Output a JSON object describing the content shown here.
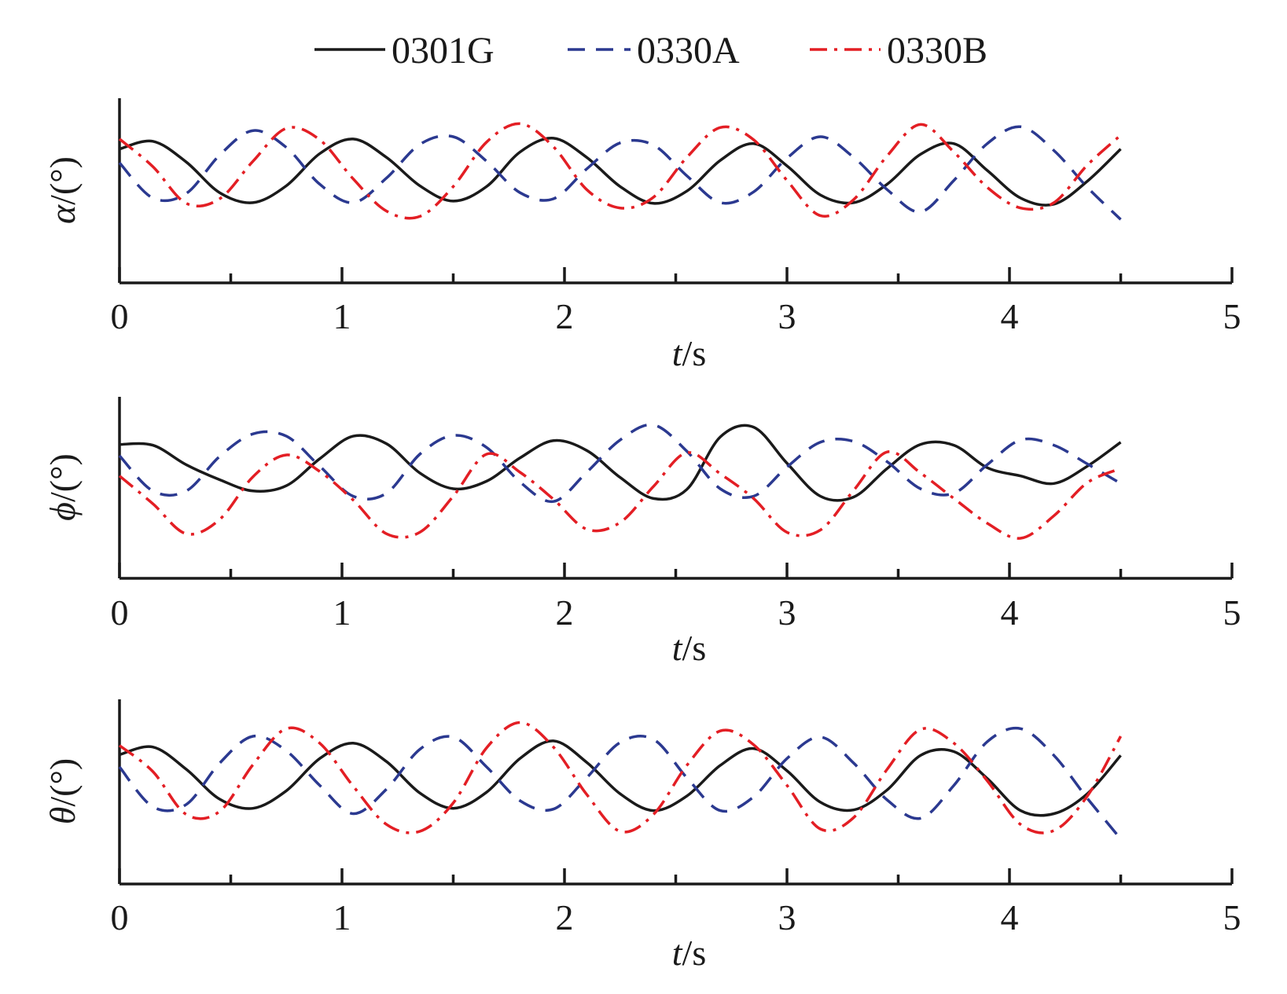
{
  "legend": [
    {
      "name": "0301G",
      "color": "#1a1a1a",
      "dash": "solid"
    },
    {
      "name": "0330A",
      "color": "#2b3990",
      "dash": "dash"
    },
    {
      "name": "0330B",
      "color": "#e31e24",
      "dash": "dashdot"
    }
  ],
  "chart_data": [
    {
      "type": "line",
      "ylabel_symbol": "α",
      "ylabel_unit": "/(°)",
      "xlabel_symbol": "t",
      "xlabel_unit": "/s",
      "xlim": [
        0,
        5
      ],
      "xticks": [
        "0",
        "1",
        "2",
        "3",
        "4",
        "5"
      ],
      "ylim": [
        -1,
        1
      ],
      "series": [
        {
          "name": "0301G",
          "x": [
            0,
            0.15,
            0.3,
            0.45,
            0.6,
            0.75,
            0.9,
            1.05,
            1.2,
            1.35,
            1.5,
            1.65,
            1.8,
            1.95,
            2.1,
            2.25,
            2.4,
            2.55,
            2.7,
            2.85,
            3.0,
            3.15,
            3.3,
            3.45,
            3.6,
            3.75,
            3.9,
            4.05,
            4.2,
            4.35,
            4.5
          ],
          "y": [
            0.44,
            0.54,
            0.27,
            -0.13,
            -0.26,
            -0.04,
            0.38,
            0.57,
            0.33,
            -0.04,
            -0.24,
            -0.05,
            0.4,
            0.58,
            0.33,
            -0.05,
            -0.27,
            -0.11,
            0.29,
            0.51,
            0.22,
            -0.16,
            -0.26,
            -0.02,
            0.37,
            0.51,
            0.16,
            -0.2,
            -0.28,
            0.02,
            0.44
          ]
        },
        {
          "name": "0330A",
          "x": [
            0,
            0.15,
            0.3,
            0.45,
            0.6,
            0.75,
            0.9,
            1.05,
            1.2,
            1.35,
            1.5,
            1.65,
            1.8,
            1.95,
            2.1,
            2.25,
            2.4,
            2.55,
            2.7,
            2.85,
            3.0,
            3.15,
            3.3,
            3.45,
            3.6,
            3.75,
            3.9,
            4.05,
            4.2,
            4.35,
            4.5
          ],
          "y": [
            0.26,
            -0.2,
            -0.14,
            0.36,
            0.68,
            0.46,
            -0.02,
            -0.26,
            0.06,
            0.5,
            0.6,
            0.28,
            -0.13,
            -0.21,
            0.18,
            0.52,
            0.49,
            0.09,
            -0.26,
            -0.12,
            0.32,
            0.6,
            0.33,
            -0.09,
            -0.38,
            0.03,
            0.51,
            0.73,
            0.42,
            -0.06,
            -0.48
          ]
        },
        {
          "name": "0330B",
          "x": [
            0,
            0.15,
            0.3,
            0.45,
            0.6,
            0.75,
            0.9,
            1.05,
            1.2,
            1.35,
            1.5,
            1.65,
            1.8,
            1.95,
            2.1,
            2.25,
            2.4,
            2.55,
            2.7,
            2.85,
            3.0,
            3.15,
            3.3,
            3.45,
            3.6,
            3.75,
            3.9,
            4.05,
            4.2,
            4.35,
            4.5
          ],
          "y": [
            0.57,
            0.21,
            -0.27,
            -0.21,
            0.28,
            0.71,
            0.56,
            0.05,
            -0.37,
            -0.44,
            -0.05,
            0.53,
            0.77,
            0.47,
            -0.09,
            -0.33,
            -0.19,
            0.33,
            0.72,
            0.56,
            0.03,
            -0.43,
            -0.22,
            0.35,
            0.76,
            0.4,
            -0.06,
            -0.33,
            -0.26,
            0.23,
            0.62
          ]
        }
      ]
    },
    {
      "type": "line",
      "ylabel_symbol": "ϕ",
      "ylabel_unit": "/(°)",
      "xlabel_symbol": "t",
      "xlabel_unit": "/s",
      "xlim": [
        0,
        5
      ],
      "xticks": [
        "0",
        "1",
        "2",
        "3",
        "4",
        "5"
      ],
      "ylim": [
        -1,
        1
      ],
      "series": [
        {
          "name": "0301G",
          "x": [
            0,
            0.15,
            0.3,
            0.45,
            0.6,
            0.75,
            0.9,
            1.05,
            1.2,
            1.35,
            1.5,
            1.65,
            1.8,
            1.95,
            2.1,
            2.25,
            2.4,
            2.55,
            2.7,
            2.85,
            3.0,
            3.15,
            3.3,
            3.45,
            3.6,
            3.75,
            3.9,
            4.05,
            4.2,
            4.35,
            4.5
          ],
          "y": [
            0.47,
            0.46,
            0.2,
            0.0,
            -0.15,
            -0.08,
            0.28,
            0.58,
            0.48,
            0.09,
            -0.12,
            -0.02,
            0.29,
            0.52,
            0.39,
            0.03,
            -0.25,
            -0.13,
            0.57,
            0.7,
            0.22,
            -0.22,
            -0.23,
            0.15,
            0.47,
            0.46,
            0.16,
            0.05,
            -0.05,
            0.18,
            0.5
          ]
        },
        {
          "name": "0330A",
          "x": [
            0,
            0.15,
            0.3,
            0.45,
            0.6,
            0.75,
            0.9,
            1.05,
            1.2,
            1.35,
            1.5,
            1.65,
            1.8,
            1.95,
            2.1,
            2.25,
            2.4,
            2.55,
            2.7,
            2.85,
            3.0,
            3.15,
            3.3,
            3.45,
            3.6,
            3.75,
            3.9,
            4.05,
            4.2,
            4.35,
            4.5
          ],
          "y": [
            0.32,
            -0.15,
            -0.15,
            0.31,
            0.61,
            0.58,
            0.18,
            -0.22,
            -0.18,
            0.34,
            0.59,
            0.43,
            -0.03,
            -0.29,
            0.1,
            0.53,
            0.73,
            0.38,
            -0.12,
            -0.22,
            0.17,
            0.5,
            0.51,
            0.24,
            -0.12,
            -0.18,
            0.2,
            0.53,
            0.46,
            0.21,
            -0.05
          ]
        },
        {
          "name": "0330B",
          "x": [
            0,
            0.15,
            0.3,
            0.45,
            0.6,
            0.75,
            0.9,
            1.05,
            1.2,
            1.35,
            1.5,
            1.65,
            1.8,
            1.95,
            2.1,
            2.25,
            2.4,
            2.55,
            2.7,
            2.85,
            3.0,
            3.15,
            3.3,
            3.45,
            3.6,
            3.75,
            3.9,
            4.05,
            4.2,
            4.35,
            4.5
          ],
          "y": [
            0.05,
            -0.32,
            -0.72,
            -0.53,
            0.04,
            0.33,
            0.11,
            -0.27,
            -0.72,
            -0.7,
            -0.22,
            0.34,
            0.1,
            -0.26,
            -0.66,
            -0.57,
            -0.09,
            0.36,
            0.08,
            -0.25,
            -0.7,
            -0.67,
            -0.14,
            0.37,
            0.09,
            -0.25,
            -0.58,
            -0.78,
            -0.48,
            -0.04,
            0.15
          ]
        }
      ]
    },
    {
      "type": "line",
      "ylabel_symbol": "θ",
      "ylabel_unit": "/(°)",
      "xlabel_symbol": "t",
      "xlabel_unit": "/s",
      "xlim": [
        0,
        5
      ],
      "xticks": [
        "0",
        "1",
        "2",
        "3",
        "4",
        "5"
      ],
      "ylim": [
        -1,
        1
      ],
      "series": [
        {
          "name": "0301G",
          "x": [
            0,
            0.15,
            0.3,
            0.45,
            0.6,
            0.75,
            0.9,
            1.05,
            1.2,
            1.35,
            1.5,
            1.65,
            1.8,
            1.95,
            2.1,
            2.25,
            2.4,
            2.55,
            2.7,
            2.85,
            3.0,
            3.15,
            3.3,
            3.45,
            3.6,
            3.75,
            3.9,
            4.05,
            4.2,
            4.35,
            4.5
          ],
          "y": [
            0.38,
            0.48,
            0.19,
            -0.2,
            -0.32,
            -0.09,
            0.33,
            0.53,
            0.29,
            -0.12,
            -0.32,
            -0.11,
            0.33,
            0.56,
            0.28,
            -0.13,
            -0.35,
            -0.16,
            0.24,
            0.46,
            0.17,
            -0.24,
            -0.34,
            -0.08,
            0.37,
            0.42,
            0.07,
            -0.35,
            -0.39,
            -0.13,
            0.37
          ]
        },
        {
          "name": "0330A",
          "x": [
            0,
            0.15,
            0.3,
            0.45,
            0.6,
            0.75,
            0.9,
            1.05,
            1.2,
            1.35,
            1.5,
            1.65,
            1.8,
            1.95,
            2.1,
            2.25,
            2.4,
            2.55,
            2.7,
            2.85,
            3.0,
            3.15,
            3.3,
            3.45,
            3.6,
            3.75,
            3.9,
            4.05,
            4.2,
            4.35,
            4.5
          ],
          "y": [
            0.22,
            -0.3,
            -0.27,
            0.27,
            0.62,
            0.43,
            -0.02,
            -0.39,
            -0.07,
            0.45,
            0.61,
            0.22,
            -0.22,
            -0.33,
            0.08,
            0.54,
            0.58,
            0.08,
            -0.35,
            -0.17,
            0.33,
            0.61,
            0.27,
            -0.21,
            -0.45,
            -0.02,
            0.55,
            0.72,
            0.37,
            -0.19,
            -0.72
          ]
        },
        {
          "name": "0330B",
          "x": [
            0,
            0.15,
            0.3,
            0.45,
            0.6,
            0.75,
            0.9,
            1.05,
            1.2,
            1.35,
            1.5,
            1.65,
            1.8,
            1.95,
            2.1,
            2.25,
            2.4,
            2.55,
            2.7,
            2.85,
            3.0,
            3.15,
            3.3,
            3.45,
            3.6,
            3.75,
            3.9,
            4.05,
            4.2,
            4.35,
            4.5
          ],
          "y": [
            0.5,
            0.16,
            -0.4,
            -0.36,
            0.25,
            0.72,
            0.53,
            -0.03,
            -0.53,
            -0.62,
            -0.25,
            0.47,
            0.8,
            0.48,
            -0.14,
            -0.62,
            -0.4,
            0.24,
            0.69,
            0.51,
            -0.02,
            -0.59,
            -0.44,
            0.19,
            0.71,
            0.53,
            0.04,
            -0.53,
            -0.61,
            -0.16,
            0.62
          ]
        }
      ]
    }
  ]
}
